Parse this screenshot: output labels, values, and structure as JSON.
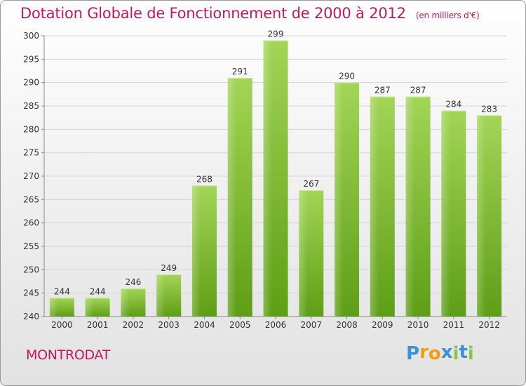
{
  "title": "Dotation Globale de Fonctionnement de 2000 à 2012",
  "subtitle": "(en milliers d'€)",
  "commune": "MONTRODAT",
  "logo": {
    "letters": [
      "P",
      "r",
      "o",
      "x",
      "i",
      "t",
      "i"
    ],
    "colors": [
      "#3d8fd6",
      "#f39c12",
      "#f39c12",
      "#3d8fd6",
      "#8bc34a",
      "#3d8fd6",
      "#8bc34a"
    ]
  },
  "chart_data": {
    "type": "bar",
    "categories": [
      "2000",
      "2001",
      "2002",
      "2003",
      "2004",
      "2005",
      "2006",
      "2007",
      "2008",
      "2009",
      "2010",
      "2011",
      "2012"
    ],
    "values": [
      244,
      244,
      246,
      249,
      268,
      291,
      299,
      267,
      290,
      287,
      287,
      284,
      283
    ],
    "ylim": [
      240,
      300
    ],
    "yticks": [
      240,
      245,
      250,
      255,
      260,
      265,
      270,
      275,
      280,
      285,
      290,
      295,
      300
    ],
    "grid": true,
    "bar_color": "#7cb82f",
    "bar_color_light": "#a6d65a"
  }
}
